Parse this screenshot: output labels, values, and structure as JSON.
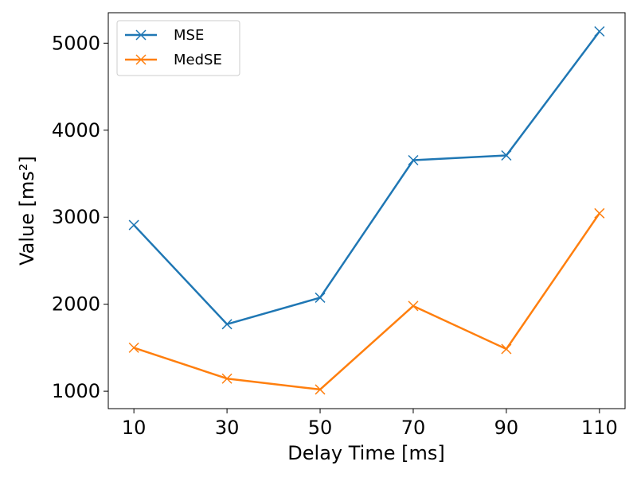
{
  "chart_data": {
    "type": "line",
    "title": "",
    "xlabel": "Delay Time [ms]",
    "ylabel": "Value [ms²]",
    "x": [
      10,
      30,
      50,
      70,
      90,
      110
    ],
    "x_ticks": [
      "10",
      "30",
      "50",
      "70",
      "90",
      "110"
    ],
    "y_ticks": [
      1000,
      2000,
      3000,
      4000,
      5000
    ],
    "y_tick_labels": [
      "1000",
      "2000",
      "3000",
      "4000",
      "5000"
    ],
    "xlim": [
      4.5,
      115.5
    ],
    "ylim": [
      800,
      5350
    ],
    "grid": false,
    "legend_position": "top-left",
    "series": [
      {
        "name": "MSE",
        "color": "#1f77b4",
        "marker": "x",
        "values": [
          2910,
          1770,
          2075,
          3655,
          3710,
          5135
        ]
      },
      {
        "name": "MedSE",
        "color": "#ff7f0e",
        "marker": "x",
        "values": [
          1500,
          1145,
          1020,
          1980,
          1485,
          3045
        ]
      }
    ]
  }
}
